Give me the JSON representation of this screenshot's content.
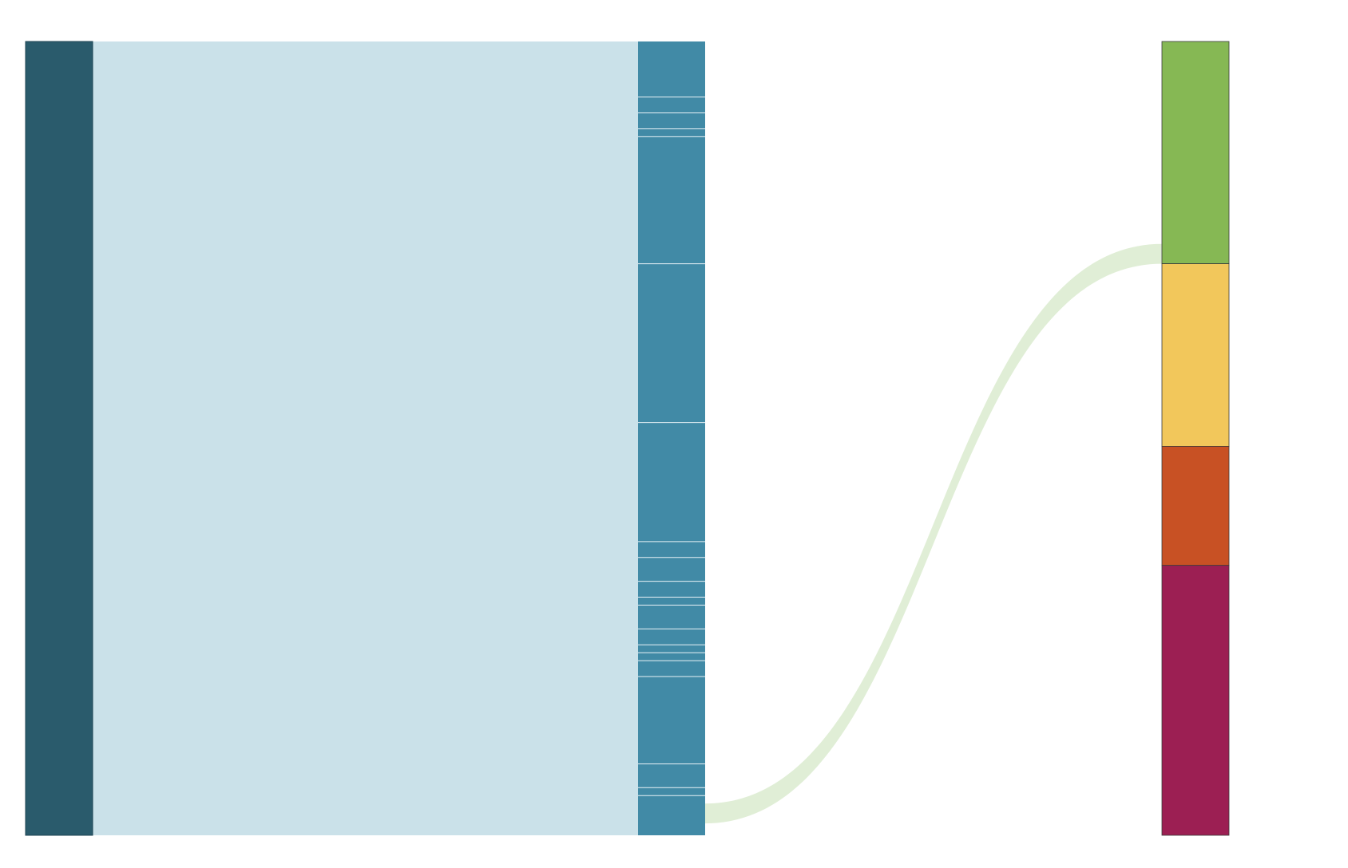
{
  "diagram": {
    "type": "sankey",
    "colors": {
      "background": "#ffffff",
      "source_node": "#2a5b6c",
      "source_flow": "#cae1e9",
      "middle_nodes": "#418aa6",
      "middle_separator": "#e8f2f6",
      "highlight_flow": "#e0eed6",
      "target_green": "#86b854",
      "target_yellow": "#f2c75b",
      "target_orange": "#c85124",
      "target_magenta": "#9c1f53"
    },
    "source_node": {
      "value": 100
    },
    "middle_nodes": [
      {
        "value": 7.0
      },
      {
        "value": 2.0
      },
      {
        "value": 2.0
      },
      {
        "value": 1.0
      },
      {
        "value": 16.0
      },
      {
        "value": 20.0
      },
      {
        "value": 15.0
      },
      {
        "value": 2.0
      },
      {
        "value": 3.0
      },
      {
        "value": 2.0
      },
      {
        "value": 1.0
      },
      {
        "value": 3.0
      },
      {
        "value": 2.0
      },
      {
        "value": 1.0
      },
      {
        "value": 1.0
      },
      {
        "value": 2.0
      },
      {
        "value": 11.0
      },
      {
        "value": 3.0
      },
      {
        "value": 1.0
      },
      {
        "value": 5.0
      }
    ],
    "target_nodes": [
      {
        "value": 28,
        "color": "#86b854"
      },
      {
        "value": 23,
        "color": "#f2c75b"
      },
      {
        "value": 15,
        "color": "#c85124"
      },
      {
        "value": 34,
        "color": "#9c1f53"
      }
    ],
    "highlighted_link": {
      "from_middle_index": 19,
      "from_offset": 1.0,
      "value": 2.5,
      "to_target_index": 0
    }
  }
}
